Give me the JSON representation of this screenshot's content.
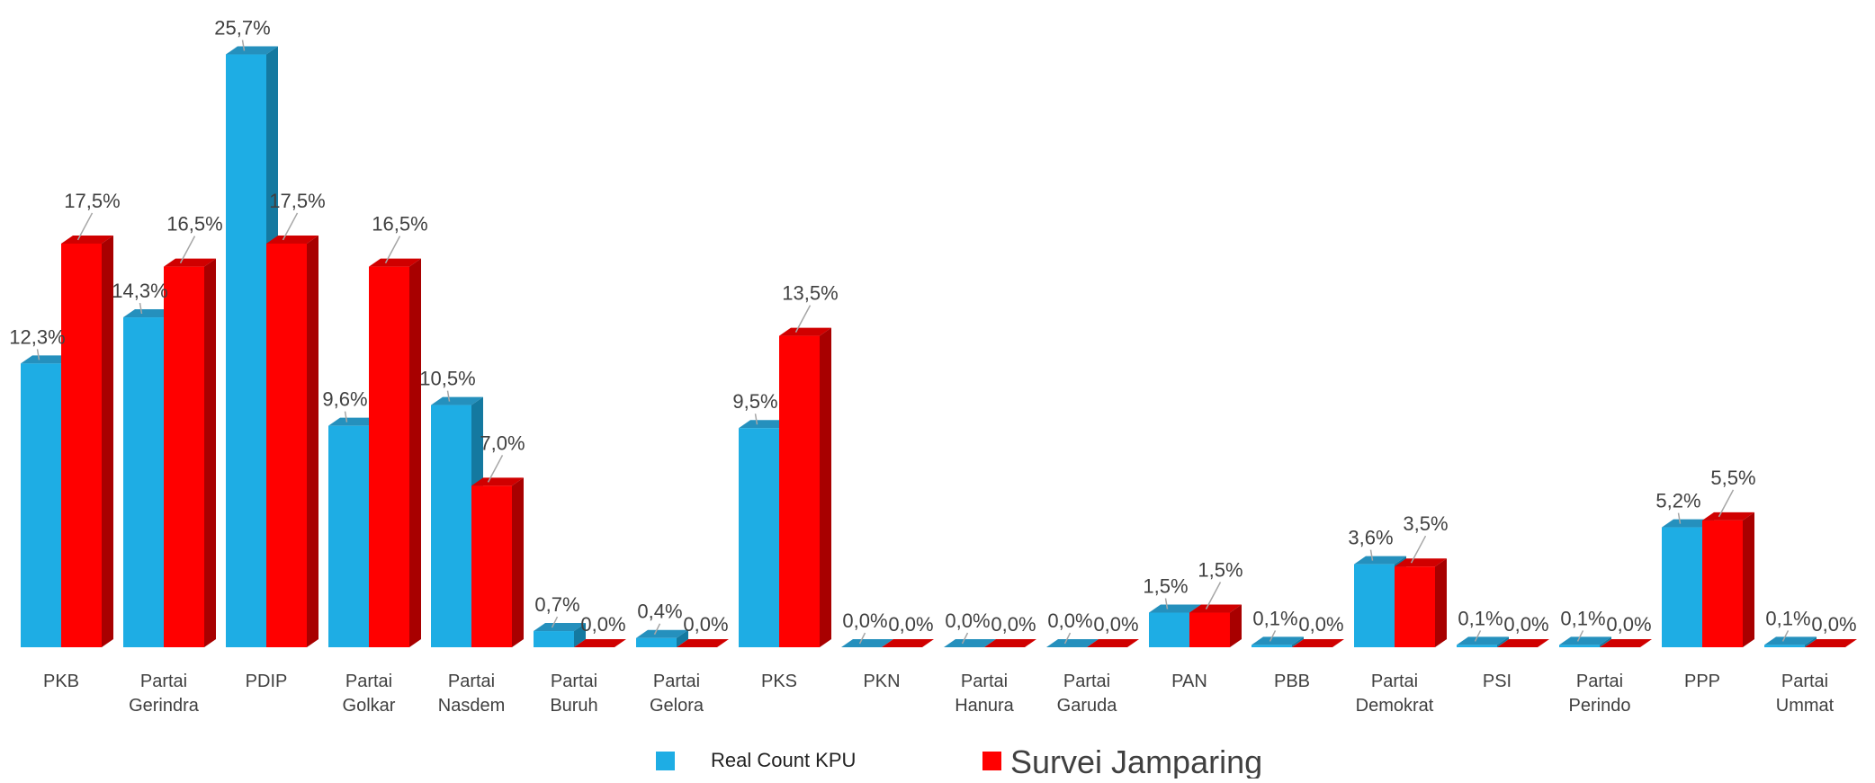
{
  "chart_data": {
    "type": "bar",
    "title": "",
    "xlabel": "",
    "ylabel": "",
    "ylim": [
      0,
      26.5
    ],
    "grid": false,
    "legend_position": "bottom",
    "categories": [
      [
        "PKB"
      ],
      [
        "Partai",
        "Gerindra"
      ],
      [
        "PDIP"
      ],
      [
        "Partai",
        "Golkar"
      ],
      [
        "Partai",
        "Nasdem"
      ],
      [
        "Partai",
        "Buruh"
      ],
      [
        "Partai",
        "Gelora"
      ],
      [
        "PKS"
      ],
      [
        "PKN"
      ],
      [
        "Partai",
        "Hanura"
      ],
      [
        "Partai",
        "Garuda"
      ],
      [
        "PAN"
      ],
      [
        "PBB"
      ],
      [
        "Partai",
        "Demokrat"
      ],
      [
        "PSI"
      ],
      [
        "Partai",
        "Perindo"
      ],
      [
        "PPP"
      ],
      [
        "Partai",
        "Ummat"
      ]
    ],
    "series": [
      {
        "name": "Real Count KPU",
        "color": "#1EADE4",
        "side_color": "#1479A0",
        "top_color": "#2590BD",
        "values": [
          12.3,
          14.3,
          25.7,
          9.6,
          10.5,
          0.7,
          0.4,
          9.5,
          0.0,
          0.0,
          0.0,
          1.5,
          0.1,
          3.6,
          0.1,
          0.1,
          5.2,
          0.1
        ],
        "labels": [
          "12,3%",
          "14,3%",
          "25,7%",
          "9,6%",
          "10,5%",
          "0,7%",
          "0,4%",
          "9,5%",
          "0,0%",
          "0,0%",
          "0,0%",
          "1,5%",
          "0,1%",
          "3,6%",
          "0,1%",
          "0,1%",
          "5,2%",
          "0,1%"
        ]
      },
      {
        "name": "Survei Jamparing",
        "color": "#FF0000",
        "side_color": "#A80000",
        "top_color": "#D00000",
        "values": [
          17.5,
          16.5,
          17.5,
          16.5,
          7.0,
          0.0,
          0.0,
          13.5,
          0.0,
          0.0,
          0.0,
          1.5,
          0.0,
          3.5,
          0.0,
          0.0,
          5.5,
          0.0
        ],
        "labels": [
          "17,5%",
          "16,5%",
          "17,5%",
          "16,5%",
          "7,0%",
          "0,0%",
          "0,0%",
          "13,5%",
          "0,0%",
          "0,0%",
          "0,0%",
          "1,5%",
          "0,0%",
          "3,5%",
          "0,0%",
          "0,0%",
          "5,5%",
          "0,0%"
        ]
      }
    ]
  }
}
